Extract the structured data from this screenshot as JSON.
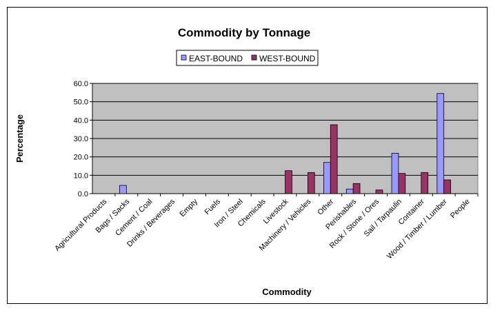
{
  "chart_data": {
    "type": "bar",
    "title": "Commodity by Tonnage",
    "xlabel": "Commodity",
    "ylabel": "Percentage",
    "ylim": [
      0,
      60
    ],
    "yticks": [
      "0.0",
      "10.0",
      "20.0",
      "30.0",
      "40.0",
      "50.0",
      "60.0"
    ],
    "grid": true,
    "legend_position": "top",
    "categories": [
      "Agricultural Products",
      "Bags / Sacks",
      "Cement / Coal",
      "Drinks / Beverages",
      "Empty",
      "Fuels",
      "Iron / Steel",
      "Chemicals",
      "Livestock",
      "Machinery / Vehicles",
      "Other",
      "Perishables",
      "Rock / Stone / Ores",
      "Sail / Tarpaulin",
      "Container",
      "Wood / Timber / Lumber",
      "People"
    ],
    "series": [
      {
        "name": "EAST-BOUND",
        "color": "#9999ff",
        "values": [
          0,
          4.5,
          0,
          0,
          0,
          0,
          0,
          0,
          0,
          0,
          17.0,
          2.5,
          0,
          22.0,
          0,
          54.5,
          0
        ]
      },
      {
        "name": "WEST-BOUND",
        "color": "#993366",
        "values": [
          0,
          0,
          0,
          0,
          0,
          0,
          0,
          0,
          12.5,
          11.5,
          37.5,
          5.5,
          2.0,
          11.0,
          11.5,
          7.5,
          0
        ]
      }
    ],
    "plot_background": "#c0c0c0"
  }
}
